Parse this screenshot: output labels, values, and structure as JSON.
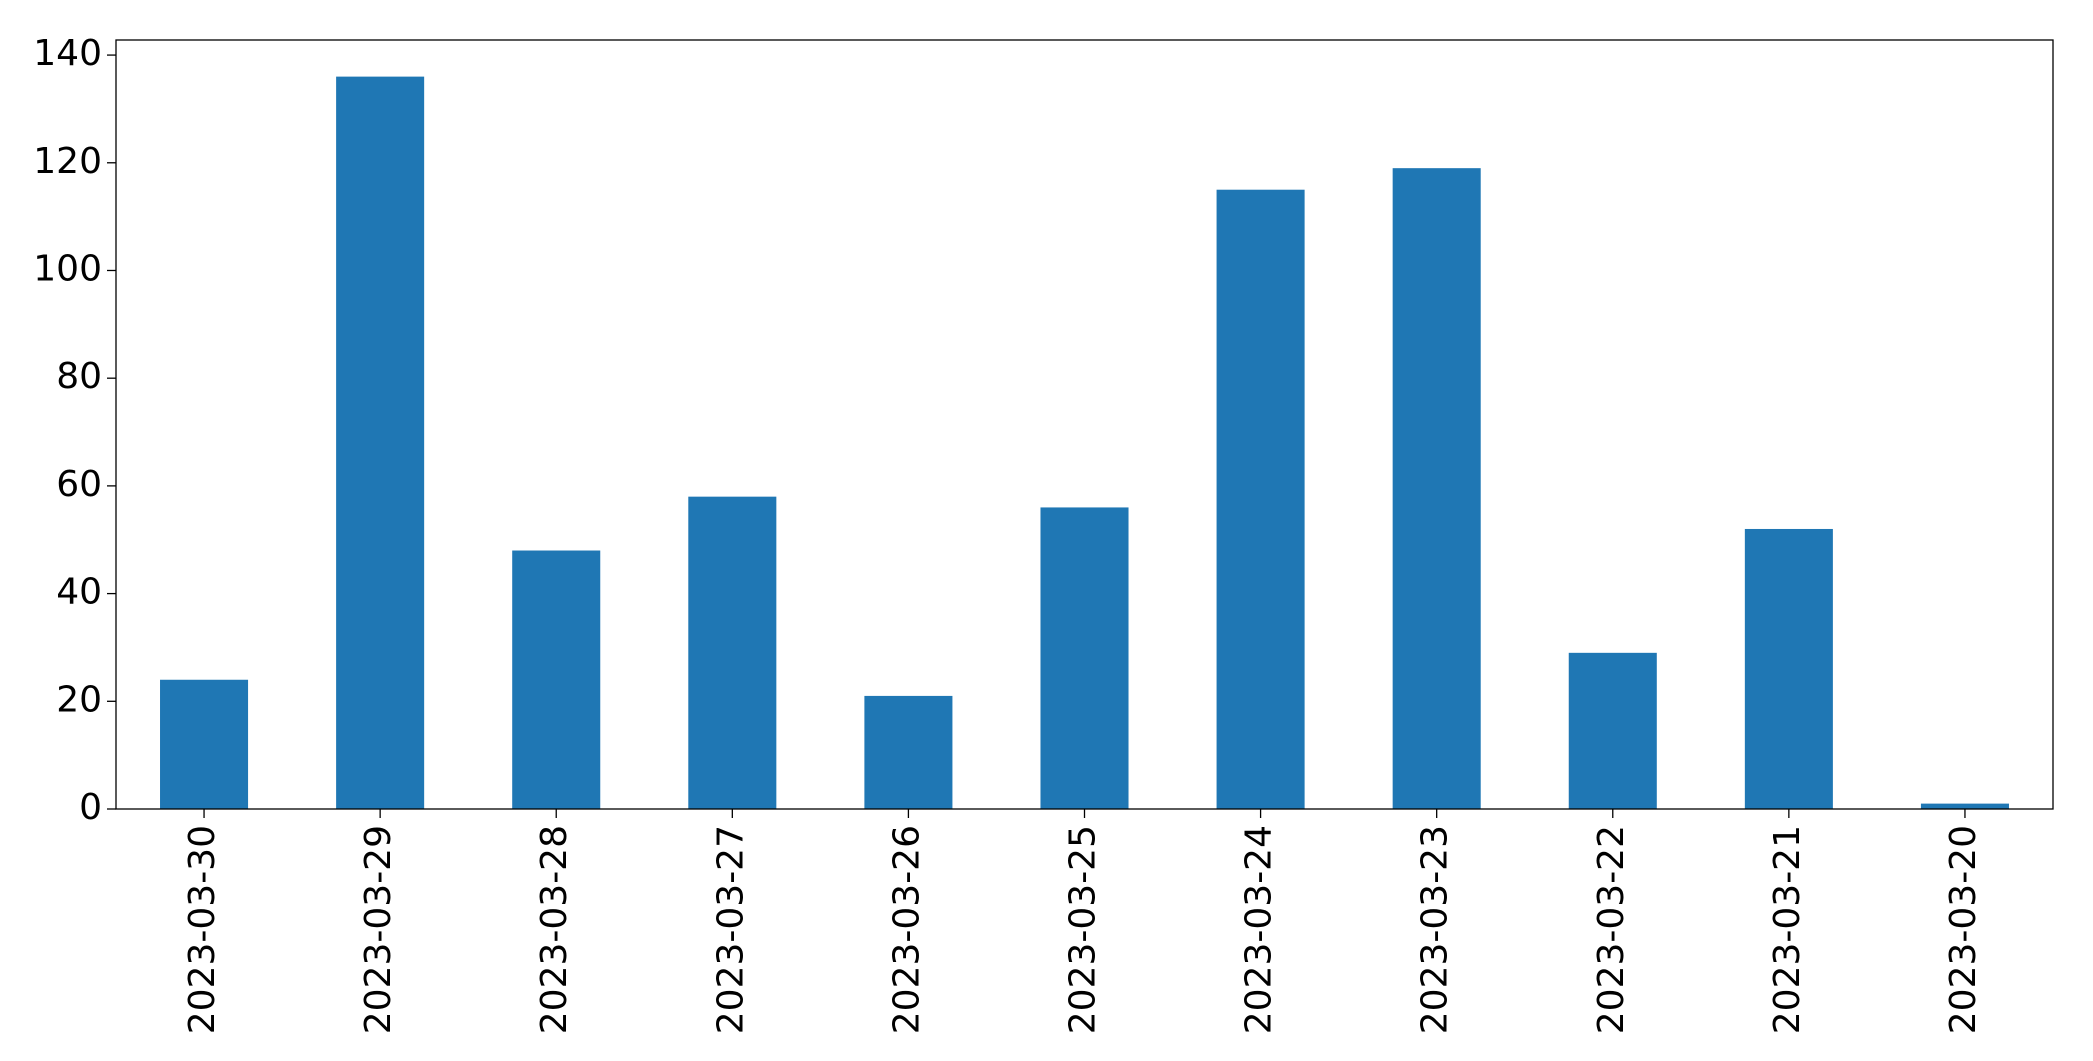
{
  "chart_data": {
    "type": "bar",
    "categories": [
      "2023-03-30",
      "2023-03-29",
      "2023-03-28",
      "2023-03-27",
      "2023-03-26",
      "2023-03-25",
      "2023-03-24",
      "2023-03-23",
      "2023-03-22",
      "2023-03-21",
      "2023-03-20"
    ],
    "values": [
      24,
      136,
      48,
      58,
      21,
      56,
      115,
      119,
      29,
      52,
      1
    ],
    "color": "#1f77b4",
    "ylim": [
      0,
      142.8
    ],
    "yticks": [
      0,
      20,
      40,
      60,
      80,
      100,
      120,
      140
    ],
    "grid": false
  }
}
